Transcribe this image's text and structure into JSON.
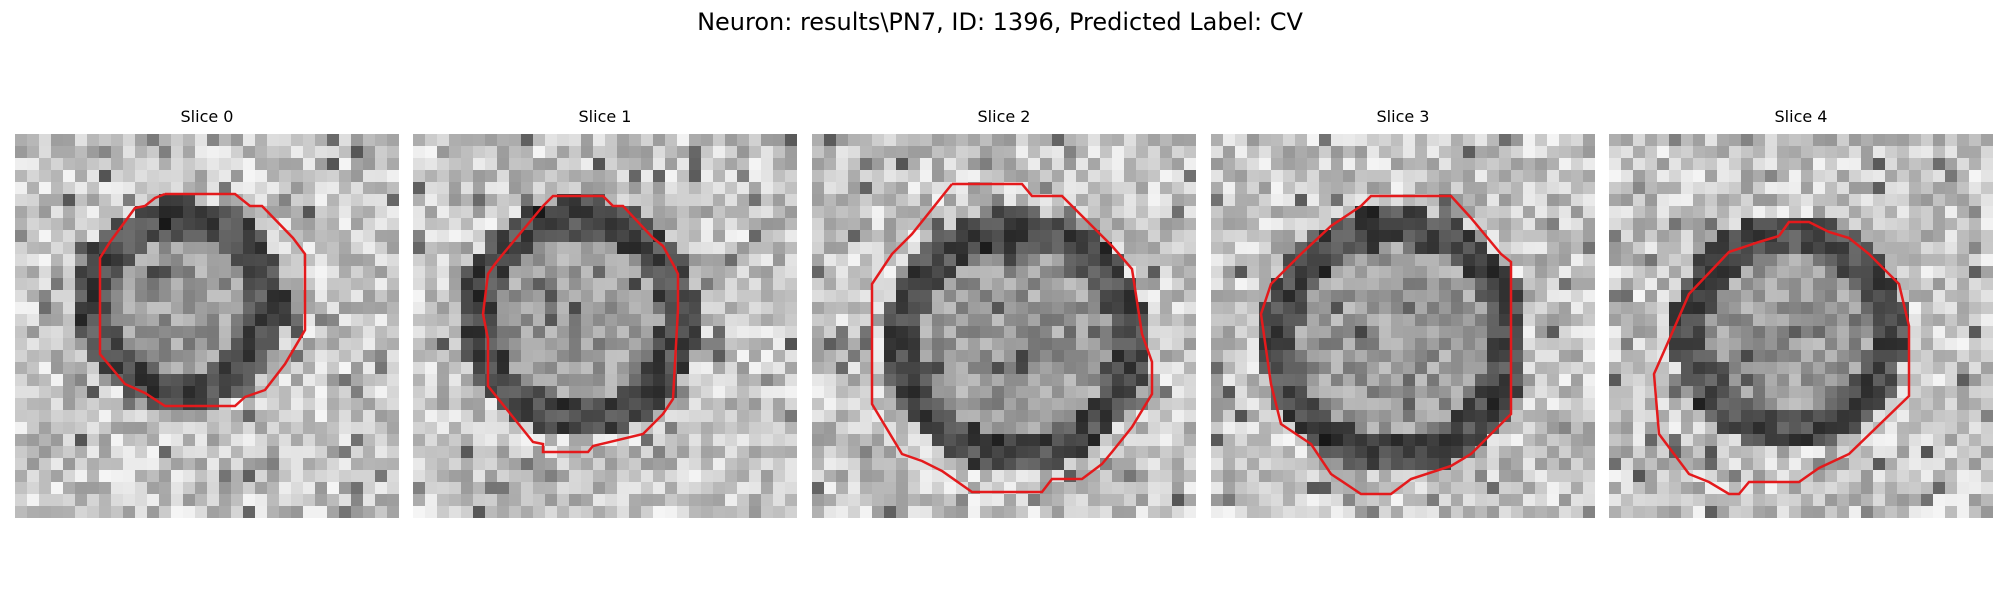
{
  "figure": {
    "title": "Neuron: results\\PN7, ID: 1396, Predicted Label: CV"
  },
  "overlay_color": "#e41a1c",
  "panels": [
    {
      "title": "Slice 0",
      "image": "grayscale electron-microscopy patch with red segmentation contour",
      "seed": 11
    },
    {
      "title": "Slice 1",
      "image": "grayscale electron-microscopy patch with red segmentation contour",
      "seed": 23
    },
    {
      "title": "Slice 2",
      "image": "grayscale electron-microscopy patch with red segmentation contour",
      "seed": 37
    },
    {
      "title": "Slice 3",
      "image": "grayscale electron-microscopy patch with red segmentation contour",
      "seed": 41
    },
    {
      "title": "Slice 4",
      "image": "grayscale electron-microscopy patch with red segmentation contour",
      "seed": 53
    }
  ]
}
